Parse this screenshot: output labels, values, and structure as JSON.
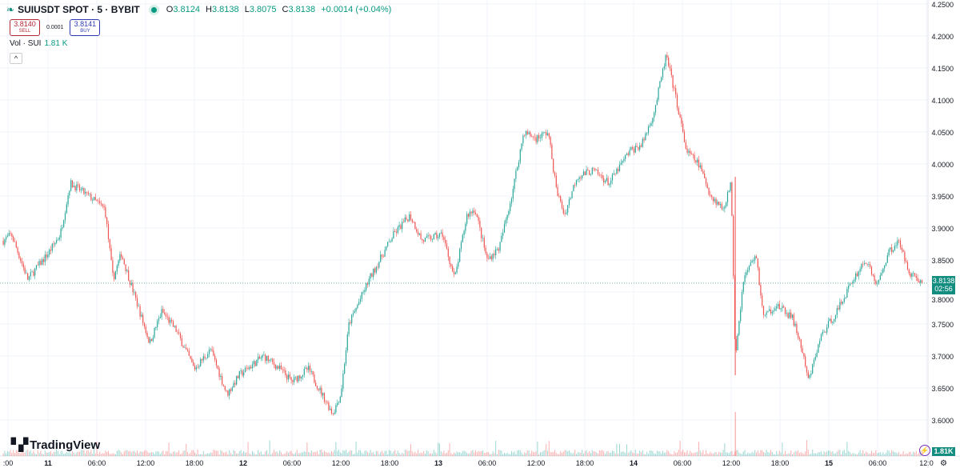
{
  "header": {
    "symbol": "SUIUSDT SPOT · 5 · BYBIT",
    "open_label": "O",
    "open": "3.8124",
    "high_label": "H",
    "high": "3.8138",
    "low_label": "L",
    "low": "3.8075",
    "close_label": "C",
    "close": "3.8138",
    "change": "+0.0014 (+0.04%)",
    "status_color": "#089981"
  },
  "trade": {
    "sell_price": "3.8140",
    "sell_label": "SELL",
    "spread": "0.0001",
    "buy_price": "3.8141",
    "buy_label": "BUY"
  },
  "volume_legend": {
    "label": "Vol · SUI",
    "value": "1.81 K"
  },
  "logo": {
    "text": "TradingView"
  },
  "price_tag": {
    "price": "3.8138",
    "countdown": "02:56"
  },
  "volume_tag": "1.81K",
  "colors": {
    "up": "#26a69a",
    "down": "#ef5350",
    "last_price": "#138d7f"
  },
  "chart_data": {
    "type": "candlestick",
    "y_ticks": [
      "4.2500",
      "4.2000",
      "4.1500",
      "4.1000",
      "4.0500",
      "4.0000",
      "3.9500",
      "3.9000",
      "3.8500",
      "3.8000",
      "3.7500",
      "3.7000",
      "3.6500",
      "3.6000"
    ],
    "ylim": [
      3.575,
      4.255
    ],
    "x_ticks": [
      ":00",
      "11",
      "06:00",
      "12:00",
      "18:00",
      "12",
      "06:00",
      "12:00",
      "18:00",
      "13",
      "06:00",
      "12:00",
      "18:00",
      "14",
      "06:00",
      "12:00",
      "18:00",
      "15",
      "06:00",
      "12:0"
    ],
    "last_price": 3.8138,
    "price_path": [
      [
        "10 18:30",
        3.88
      ],
      [
        "10 19:30",
        3.89
      ],
      [
        "10 21:30",
        3.82
      ],
      [
        "11 00:00",
        3.86
      ],
      [
        "11 01:30",
        3.89
      ],
      [
        "11 02:45",
        3.97
      ],
      [
        "11 05:00",
        3.95
      ],
      [
        "11 07:00",
        3.93
      ],
      [
        "11 08:00",
        3.82
      ],
      [
        "11 09:00",
        3.86
      ],
      [
        "11 11:00",
        3.78
      ],
      [
        "11 12:30",
        3.72
      ],
      [
        "11 14:00",
        3.77
      ],
      [
        "11 15:45",
        3.74
      ],
      [
        "11 18:00",
        3.68
      ],
      [
        "11 20:00",
        3.71
      ],
      [
        "11 22:00",
        3.64
      ],
      [
        "11 23:30",
        3.67
      ],
      [
        "12 02:30",
        3.7
      ],
      [
        "12 04:30",
        3.68
      ],
      [
        "12 06:00",
        3.66
      ],
      [
        "12 08:00",
        3.68
      ],
      [
        "12 11:00",
        3.61
      ],
      [
        "12 12:00",
        3.64
      ],
      [
        "12 13:00",
        3.75
      ],
      [
        "12 15:30",
        3.82
      ],
      [
        "12 18:30",
        3.89
      ],
      [
        "12 20:30",
        3.92
      ],
      [
        "12 22:00",
        3.88
      ],
      [
        "13 00:30",
        3.89
      ],
      [
        "13 02:00",
        3.82
      ],
      [
        "13 03:30",
        3.92
      ],
      [
        "13 04:30",
        3.93
      ],
      [
        "13 06:00",
        3.85
      ],
      [
        "13 07:30",
        3.87
      ],
      [
        "13 09:00",
        3.95
      ],
      [
        "13 10:30",
        4.05
      ],
      [
        "13 12:00",
        4.04
      ],
      [
        "13 13:30",
        4.05
      ],
      [
        "13 14:30",
        3.96
      ],
      [
        "13 15:30",
        3.92
      ],
      [
        "13 17:00",
        3.98
      ],
      [
        "13 19:00",
        3.99
      ],
      [
        "13 21:00",
        3.97
      ],
      [
        "13 23:30",
        4.02
      ],
      [
        "14 01:00",
        4.03
      ],
      [
        "14 02:30",
        4.08
      ],
      [
        "14 04:00",
        4.17
      ],
      [
        "14 05:15",
        4.1
      ],
      [
        "14 06:30",
        4.02
      ],
      [
        "14 08:00",
        4.0
      ],
      [
        "14 09:30",
        3.95
      ],
      [
        "14 11:00",
        3.93
      ],
      [
        "14 12:00",
        3.97
      ],
      [
        "14 12:30",
        3.7
      ],
      [
        "14 13:30",
        3.82
      ],
      [
        "14 15:00",
        3.86
      ],
      [
        "14 16:00",
        3.76
      ],
      [
        "14 17:30",
        3.78
      ],
      [
        "14 19:30",
        3.76
      ],
      [
        "14 20:30",
        3.72
      ],
      [
        "14 21:30",
        3.66
      ],
      [
        "14 23:00",
        3.73
      ],
      [
        "15 01:00",
        3.77
      ],
      [
        "15 03:00",
        3.82
      ],
      [
        "15 04:30",
        3.85
      ],
      [
        "15 06:00",
        3.81
      ],
      [
        "15 07:15",
        3.86
      ],
      [
        "15 08:30",
        3.88
      ],
      [
        "15 10:00",
        3.83
      ],
      [
        "15 11:30",
        3.8138
      ]
    ]
  }
}
